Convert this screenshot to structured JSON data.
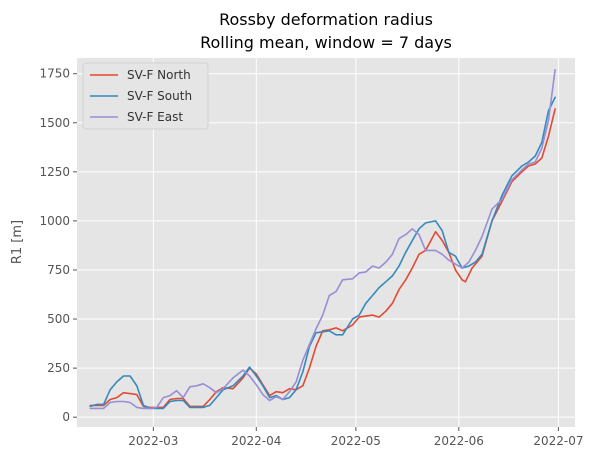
{
  "chart_data": {
    "type": "line",
    "title_line1": "Rossby deformation radius",
    "title_line2": "Rolling mean, window = 7 days",
    "xlabel": "",
    "ylabel": "R1 [m]",
    "ylim": [
      -50,
      1830
    ],
    "xlim": [
      "2022-02-06",
      "2022-07-06"
    ],
    "yticks": [
      0,
      250,
      500,
      750,
      1000,
      1250,
      1500,
      1750
    ],
    "xticks": [
      {
        "date": "2022-03-01",
        "label": "2022-03"
      },
      {
        "date": "2022-04-01",
        "label": "2022-04"
      },
      {
        "date": "2022-05-01",
        "label": "2022-05"
      },
      {
        "date": "2022-06-01",
        "label": "2022-06"
      },
      {
        "date": "2022-07-01",
        "label": "2022-07"
      }
    ],
    "grid": true,
    "legend_position": "top-left",
    "series": [
      {
        "name": "SV-F North",
        "color": "#E24A33",
        "x": [
          "2022-02-10",
          "2022-02-12",
          "2022-02-14",
          "2022-02-16",
          "2022-02-18",
          "2022-02-20",
          "2022-02-22",
          "2022-02-24",
          "2022-02-26",
          "2022-02-28",
          "2022-03-02",
          "2022-03-04",
          "2022-03-06",
          "2022-03-08",
          "2022-03-10",
          "2022-03-12",
          "2022-03-14",
          "2022-03-16",
          "2022-03-18",
          "2022-03-20",
          "2022-03-22",
          "2022-03-25",
          "2022-03-28",
          "2022-03-30",
          "2022-04-01",
          "2022-04-03",
          "2022-04-05",
          "2022-04-07",
          "2022-04-09",
          "2022-04-11",
          "2022-04-13",
          "2022-04-15",
          "2022-04-17",
          "2022-04-19",
          "2022-04-21",
          "2022-04-23",
          "2022-04-25",
          "2022-04-27",
          "2022-04-30",
          "2022-05-02",
          "2022-05-04",
          "2022-05-06",
          "2022-05-08",
          "2022-05-10",
          "2022-05-12",
          "2022-05-14",
          "2022-05-16",
          "2022-05-18",
          "2022-05-20",
          "2022-05-22",
          "2022-05-25",
          "2022-05-27",
          "2022-05-29",
          "2022-05-31",
          "2022-06-02",
          "2022-06-03",
          "2022-06-05",
          "2022-06-08",
          "2022-06-11",
          "2022-06-14",
          "2022-06-17",
          "2022-06-20",
          "2022-06-22",
          "2022-06-24",
          "2022-06-26",
          "2022-06-28",
          "2022-06-30"
        ],
        "values": [
          60,
          60,
          60,
          90,
          100,
          125,
          120,
          115,
          55,
          50,
          50,
          50,
          90,
          95,
          95,
          55,
          55,
          55,
          90,
          130,
          150,
          145,
          200,
          250,
          220,
          165,
          110,
          130,
          125,
          145,
          140,
          160,
          250,
          360,
          440,
          445,
          455,
          440,
          470,
          510,
          515,
          520,
          510,
          540,
          580,
          650,
          700,
          760,
          830,
          850,
          945,
          900,
          840,
          750,
          700,
          690,
          760,
          820,
          1000,
          1100,
          1200,
          1250,
          1280,
          1290,
          1320,
          1430,
          1570
        ]
      },
      {
        "name": "SV-F South",
        "color": "#348ABD",
        "x": [
          "2022-02-10",
          "2022-02-12",
          "2022-02-14",
          "2022-02-16",
          "2022-02-18",
          "2022-02-20",
          "2022-02-22",
          "2022-02-24",
          "2022-02-26",
          "2022-02-28",
          "2022-03-02",
          "2022-03-04",
          "2022-03-06",
          "2022-03-08",
          "2022-03-10",
          "2022-03-12",
          "2022-03-14",
          "2022-03-16",
          "2022-03-18",
          "2022-03-20",
          "2022-03-22",
          "2022-03-25",
          "2022-03-28",
          "2022-03-30",
          "2022-04-01",
          "2022-04-03",
          "2022-04-05",
          "2022-04-07",
          "2022-04-09",
          "2022-04-11",
          "2022-04-13",
          "2022-04-15",
          "2022-04-17",
          "2022-04-19",
          "2022-04-21",
          "2022-04-23",
          "2022-04-25",
          "2022-04-27",
          "2022-04-30",
          "2022-05-02",
          "2022-05-04",
          "2022-05-06",
          "2022-05-08",
          "2022-05-10",
          "2022-05-12",
          "2022-05-14",
          "2022-05-16",
          "2022-05-18",
          "2022-05-20",
          "2022-05-22",
          "2022-05-25",
          "2022-05-27",
          "2022-05-29",
          "2022-05-31",
          "2022-06-02",
          "2022-06-04",
          "2022-06-06",
          "2022-06-08",
          "2022-06-11",
          "2022-06-14",
          "2022-06-17",
          "2022-06-20",
          "2022-06-22",
          "2022-06-24",
          "2022-06-26",
          "2022-06-28",
          "2022-06-30"
        ],
        "values": [
          55,
          65,
          65,
          140,
          180,
          210,
          210,
          160,
          60,
          45,
          45,
          45,
          80,
          85,
          85,
          50,
          50,
          50,
          60,
          100,
          140,
          160,
          210,
          255,
          210,
          160,
          100,
          110,
          90,
          100,
          140,
          230,
          360,
          430,
          435,
          440,
          420,
          420,
          500,
          520,
          580,
          620,
          660,
          690,
          720,
          770,
          840,
          900,
          960,
          990,
          1000,
          950,
          840,
          820,
          760,
          770,
          790,
          830,
          1000,
          1130,
          1230,
          1280,
          1300,
          1330,
          1400,
          1560,
          1630
        ]
      },
      {
        "name": "SV-F East",
        "color": "#988ED5",
        "x": [
          "2022-02-10",
          "2022-02-12",
          "2022-02-14",
          "2022-02-16",
          "2022-02-18",
          "2022-02-20",
          "2022-02-22",
          "2022-02-24",
          "2022-02-26",
          "2022-02-28",
          "2022-03-02",
          "2022-03-04",
          "2022-03-06",
          "2022-03-08",
          "2022-03-10",
          "2022-03-12",
          "2022-03-14",
          "2022-03-16",
          "2022-03-18",
          "2022-03-20",
          "2022-03-22",
          "2022-03-25",
          "2022-03-28",
          "2022-03-30",
          "2022-04-01",
          "2022-04-03",
          "2022-04-05",
          "2022-04-07",
          "2022-04-09",
          "2022-04-11",
          "2022-04-13",
          "2022-04-15",
          "2022-04-17",
          "2022-04-19",
          "2022-04-21",
          "2022-04-23",
          "2022-04-25",
          "2022-04-27",
          "2022-04-30",
          "2022-05-02",
          "2022-05-04",
          "2022-05-06",
          "2022-05-08",
          "2022-05-10",
          "2022-05-12",
          "2022-05-14",
          "2022-05-16",
          "2022-05-18",
          "2022-05-20",
          "2022-05-22",
          "2022-05-25",
          "2022-05-27",
          "2022-05-29",
          "2022-05-31",
          "2022-06-02",
          "2022-06-04",
          "2022-06-06",
          "2022-06-08",
          "2022-06-11",
          "2022-06-14",
          "2022-06-17",
          "2022-06-20",
          "2022-06-22",
          "2022-06-24",
          "2022-06-26",
          "2022-06-28",
          "2022-06-30"
        ],
        "values": [
          45,
          45,
          45,
          75,
          80,
          80,
          75,
          50,
          45,
          45,
          50,
          100,
          110,
          135,
          100,
          155,
          160,
          170,
          150,
          125,
          145,
          200,
          240,
          210,
          165,
          115,
          85,
          105,
          90,
          130,
          180,
          290,
          370,
          450,
          520,
          620,
          640,
          700,
          705,
          735,
          740,
          770,
          760,
          790,
          830,
          910,
          930,
          960,
          930,
          850,
          850,
          830,
          800,
          780,
          760,
          790,
          850,
          920,
          1060,
          1110,
          1210,
          1260,
          1290,
          1300,
          1370,
          1510,
          1770
        ]
      }
    ]
  }
}
